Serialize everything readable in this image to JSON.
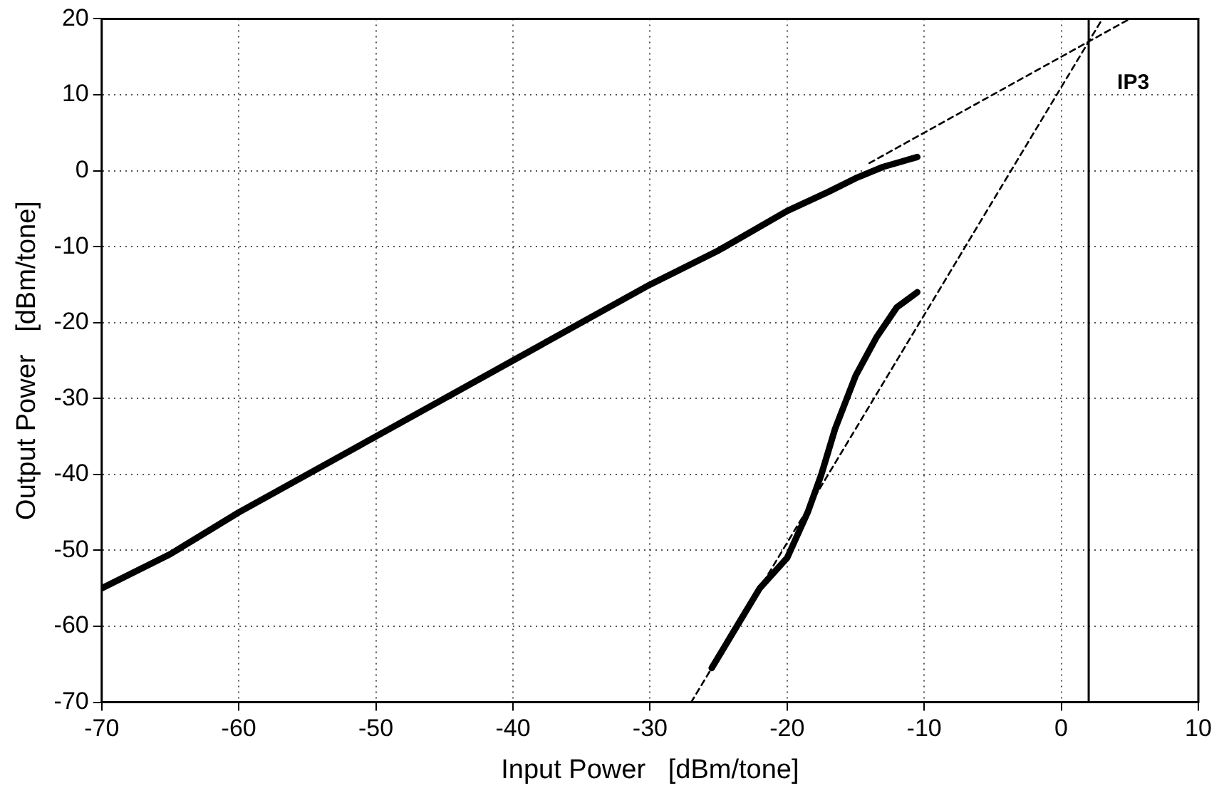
{
  "chart_data": {
    "type": "line",
    "xlabel": "Input Power   [dBm/tone]",
    "ylabel": "Output Power   [dBm/tone]",
    "xlim": [
      -70,
      10
    ],
    "xticks": [
      -70,
      -60,
      -50,
      -40,
      -30,
      -20,
      -10,
      0,
      10
    ],
    "ylim": [
      -70,
      20
    ],
    "yticks": [
      -70,
      -60,
      -50,
      -40,
      -30,
      -20,
      -10,
      0,
      10,
      20
    ],
    "grid": true,
    "legend": false,
    "marker": "none",
    "series": [
      {
        "color": "#000000",
        "line_style": "solid",
        "x": [
          -70,
          -65,
          -60,
          -50,
          -40,
          -30,
          -25,
          -20,
          -17,
          -15,
          -13,
          -10.5
        ],
        "values": [
          -55,
          -50.5,
          -45,
          -35,
          -25,
          -15,
          -10.5,
          -5.3,
          -2.8,
          -1,
          0.5,
          1.8
        ]
      },
      {
        "color": "#000000",
        "line_style": "solid",
        "x": [
          -25.5,
          -24,
          -22,
          -20,
          -18.5,
          -17.5,
          -16.5,
          -15,
          -13.5,
          -12,
          -10.5
        ],
        "values": [
          -65.5,
          -61,
          -55,
          -51,
          -45,
          -40,
          -34,
          -27,
          -22,
          -18,
          -16
        ]
      },
      {
        "type": "line",
        "color": "#000000",
        "line_style": "dashed",
        "x": [
          -14,
          5
        ],
        "values": [
          1,
          20
        ]
      },
      {
        "type": "line",
        "color": "#000000",
        "line_style": "dashed",
        "x": [
          -27,
          3
        ],
        "values": [
          -70,
          20
        ]
      }
    ],
    "ref_lines": [
      {
        "axis": "x",
        "value": 2,
        "label": "IP3",
        "color": "#000000"
      }
    ]
  }
}
